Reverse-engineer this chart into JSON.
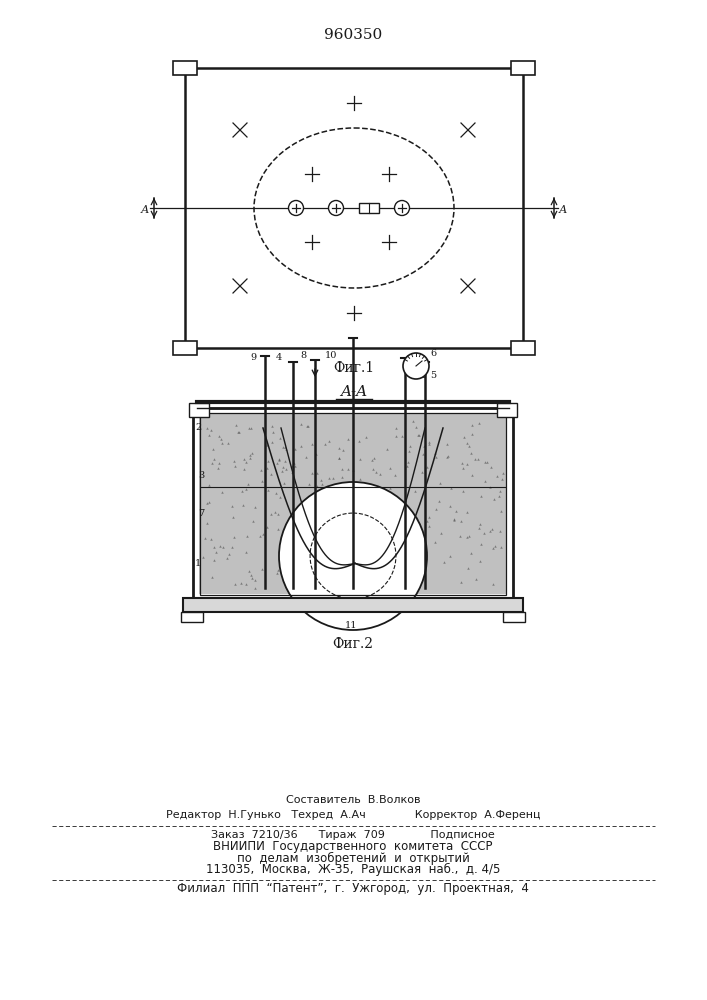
{
  "patent_number": "960350",
  "fig1_label": "Фиг.1",
  "fig2_label": "Фиг.2",
  "section_label": "A-A",
  "line_color": "#1a1a1a",
  "footer_lines": [
    "Составитель  В.Волков",
    "Редактор  Н.Гунько   Техред  А.Ач              Корректор  А.Ференц",
    "Заказ  7210/36      Тираж  709             Подписное",
    "ВНИИПИ  Государственного  комитета  СССР",
    "по  делам  изобретений  и  открытий",
    "113035,  Москва,  Ж-35,  Раушская  наб.,  д. 4/5",
    "Филиал  ППП  “Патент”,  г.  Ужгород,  ул.  Проектная,  4"
  ]
}
